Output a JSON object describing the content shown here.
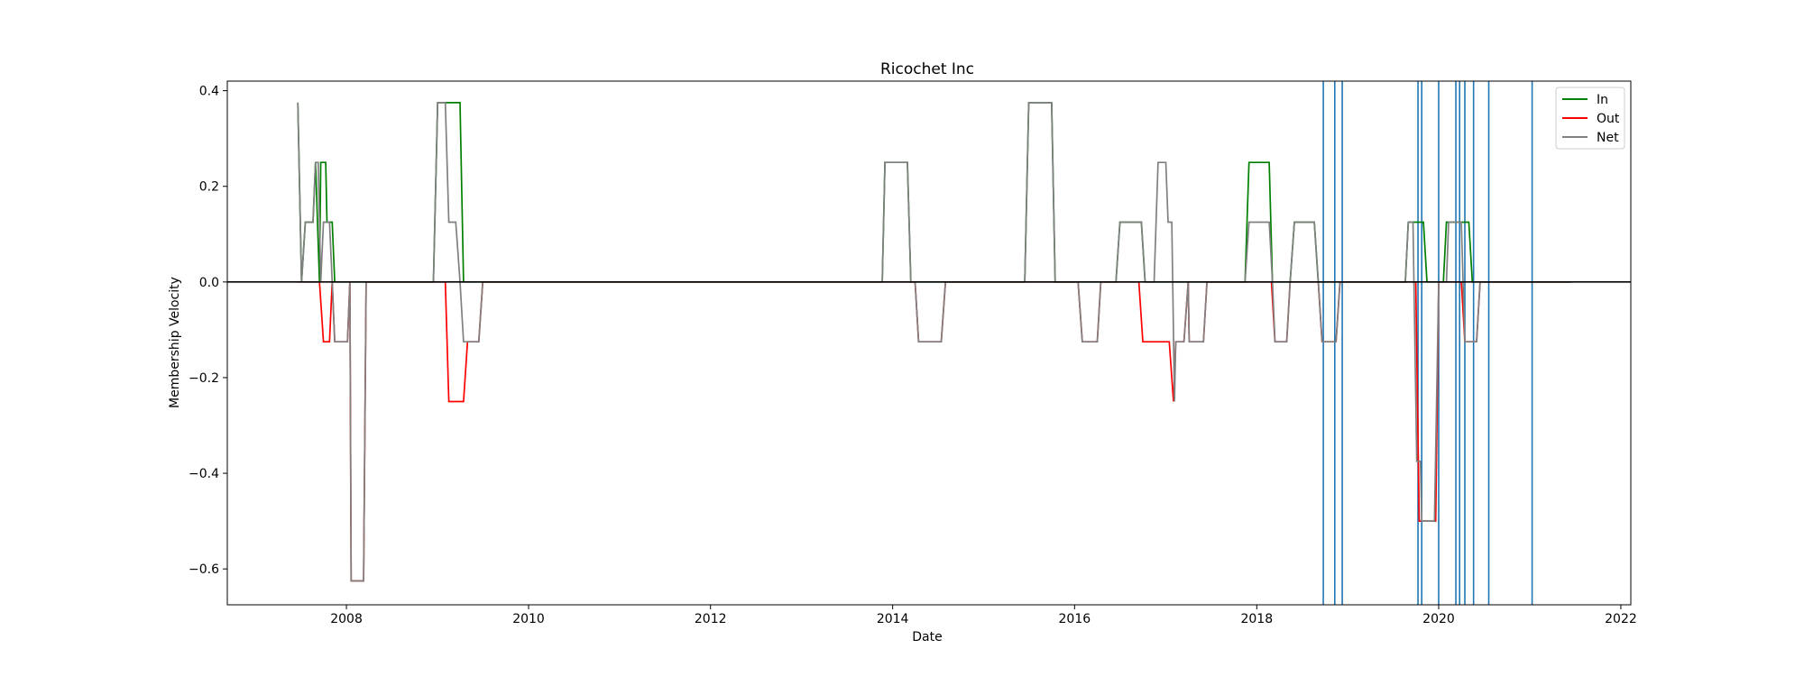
{
  "chart_data": {
    "type": "line",
    "title": "Ricochet Inc",
    "xlabel": "Date",
    "ylabel": "Membership Velocity",
    "xlim": [
      "2006-09-10",
      "2022-02-10"
    ],
    "ylim": [
      -0.675,
      0.42
    ],
    "x_ticks": [
      {
        "date": "2008-01-01",
        "label": "2008"
      },
      {
        "date": "2010-01-01",
        "label": "2010"
      },
      {
        "date": "2012-01-01",
        "label": "2012"
      },
      {
        "date": "2014-01-01",
        "label": "2014"
      },
      {
        "date": "2016-01-01",
        "label": "2016"
      },
      {
        "date": "2018-01-01",
        "label": "2018"
      },
      {
        "date": "2020-01-01",
        "label": "2020"
      },
      {
        "date": "2022-01-01",
        "label": "2022"
      }
    ],
    "y_ticks": [
      {
        "value": 0.4,
        "label": "0.4"
      },
      {
        "value": 0.2,
        "label": "0.2"
      },
      {
        "value": 0.0,
        "label": "0.0"
      },
      {
        "value": -0.2,
        "label": "−0.2"
      },
      {
        "value": -0.4,
        "label": "−0.4"
      },
      {
        "value": -0.6,
        "label": "−0.6"
      }
    ],
    "grid": false,
    "legend": "top-right",
    "zero_line_color": "#000000",
    "event_line_color": "#1f77b4",
    "series": [
      {
        "name": "In",
        "color": "#008000",
        "points": [
          [
            "2007-06-20",
            0.375
          ],
          [
            "2007-07-05",
            0.0
          ],
          [
            "2007-07-20",
            0.125
          ],
          [
            "2007-08-20",
            0.125
          ],
          [
            "2007-08-30",
            0.25
          ],
          [
            "2007-09-15",
            0.0
          ],
          [
            "2007-09-20",
            0.25
          ],
          [
            "2007-10-10",
            0.25
          ],
          [
            "2007-10-15",
            0.125
          ],
          [
            "2007-11-05",
            0.125
          ],
          [
            "2007-11-15",
            0.0
          ],
          [
            "2008-12-15",
            0.0
          ],
          [
            "2009-01-01",
            0.375
          ],
          [
            "2009-04-01",
            0.375
          ],
          [
            "2009-04-15",
            0.0
          ],
          [
            "2013-11-20",
            0.0
          ],
          [
            "2013-12-01",
            0.25
          ],
          [
            "2014-03-01",
            0.25
          ],
          [
            "2014-03-15",
            0.0
          ],
          [
            "2015-06-15",
            0.0
          ],
          [
            "2015-07-01",
            0.375
          ],
          [
            "2015-10-01",
            0.375
          ],
          [
            "2015-10-15",
            0.0
          ],
          [
            "2016-06-15",
            0.0
          ],
          [
            "2016-07-01",
            0.125
          ],
          [
            "2016-09-25",
            0.125
          ],
          [
            "2016-10-10",
            0.0
          ],
          [
            "2017-11-15",
            0.0
          ],
          [
            "2017-12-01",
            0.25
          ],
          [
            "2018-02-20",
            0.25
          ],
          [
            "2018-03-05",
            0.0
          ],
          [
            "2018-05-15",
            0.0
          ],
          [
            "2018-06-01",
            0.125
          ],
          [
            "2018-08-20",
            0.125
          ],
          [
            "2018-09-05",
            0.0
          ],
          [
            "2019-08-20",
            0.0
          ],
          [
            "2019-09-01",
            0.125
          ],
          [
            "2019-11-01",
            0.125
          ],
          [
            "2019-11-15",
            0.0
          ],
          [
            "2020-01-20",
            0.0
          ],
          [
            "2020-02-01",
            0.125
          ],
          [
            "2020-05-01",
            0.125
          ],
          [
            "2020-05-15",
            0.0
          ],
          [
            "2021-06-15",
            0.0
          ]
        ]
      },
      {
        "name": "Out",
        "color": "#ff0000",
        "points": [
          [
            "2007-06-20",
            0.0
          ],
          [
            "2007-09-15",
            0.0
          ],
          [
            "2007-10-01",
            -0.125
          ],
          [
            "2007-10-25",
            -0.125
          ],
          [
            "2007-11-05",
            0.0
          ],
          [
            "2007-11-15",
            -0.125
          ],
          [
            "2008-01-05",
            -0.125
          ],
          [
            "2008-01-15",
            0.0
          ],
          [
            "2008-01-20",
            -0.625
          ],
          [
            "2008-03-10",
            -0.625
          ],
          [
            "2008-03-20",
            0.0
          ],
          [
            "2009-02-01",
            0.0
          ],
          [
            "2009-02-15",
            -0.25
          ],
          [
            "2009-04-15",
            -0.25
          ],
          [
            "2009-05-01",
            -0.125
          ],
          [
            "2009-06-15",
            -0.125
          ],
          [
            "2009-07-01",
            0.0
          ],
          [
            "2014-04-01",
            0.0
          ],
          [
            "2014-04-15",
            -0.125
          ],
          [
            "2014-07-15",
            -0.125
          ],
          [
            "2014-08-01",
            0.0
          ],
          [
            "2016-01-15",
            0.0
          ],
          [
            "2016-02-01",
            -0.125
          ],
          [
            "2016-04-01",
            -0.125
          ],
          [
            "2016-04-15",
            0.0
          ],
          [
            "2016-09-15",
            0.0
          ],
          [
            "2016-10-01",
            -0.125
          ],
          [
            "2017-01-15",
            -0.125
          ],
          [
            "2017-02-01",
            -0.25
          ],
          [
            "2017-02-10",
            -0.125
          ],
          [
            "2017-03-15",
            -0.125
          ],
          [
            "2017-04-01",
            0.0
          ],
          [
            "2017-04-05",
            -0.125
          ],
          [
            "2017-06-01",
            -0.125
          ],
          [
            "2017-06-15",
            0.0
          ],
          [
            "2018-03-01",
            0.0
          ],
          [
            "2018-03-15",
            -0.125
          ],
          [
            "2018-05-01",
            -0.125
          ],
          [
            "2018-05-15",
            0.0
          ],
          [
            "2018-09-05",
            0.0
          ],
          [
            "2018-09-20",
            -0.125
          ],
          [
            "2018-11-15",
            -0.125
          ],
          [
            "2018-12-01",
            0.0
          ],
          [
            "2019-10-01",
            0.0
          ],
          [
            "2019-10-15",
            -0.5
          ],
          [
            "2019-12-20",
            -0.5
          ],
          [
            "2020-01-01",
            0.0
          ],
          [
            "2020-04-01",
            0.0
          ],
          [
            "2020-04-15",
            -0.125
          ],
          [
            "2020-06-01",
            -0.125
          ],
          [
            "2020-06-15",
            0.0
          ],
          [
            "2021-06-15",
            0.0
          ]
        ]
      },
      {
        "name": "Net",
        "color": "#808080",
        "points": [
          [
            "2007-06-20",
            0.375
          ],
          [
            "2007-07-05",
            0.0
          ],
          [
            "2007-07-20",
            0.125
          ],
          [
            "2007-08-20",
            0.125
          ],
          [
            "2007-08-30",
            0.25
          ],
          [
            "2007-09-10",
            0.25
          ],
          [
            "2007-09-20",
            0.0
          ],
          [
            "2007-10-01",
            0.125
          ],
          [
            "2007-10-25",
            0.125
          ],
          [
            "2007-11-05",
            0.0
          ],
          [
            "2007-11-15",
            -0.125
          ],
          [
            "2008-01-05",
            -0.125
          ],
          [
            "2008-01-15",
            0.0
          ],
          [
            "2008-01-20",
            -0.625
          ],
          [
            "2008-03-10",
            -0.625
          ],
          [
            "2008-03-20",
            0.0
          ],
          [
            "2008-12-15",
            0.0
          ],
          [
            "2009-01-01",
            0.375
          ],
          [
            "2009-02-01",
            0.375
          ],
          [
            "2009-02-15",
            0.125
          ],
          [
            "2009-03-15",
            0.125
          ],
          [
            "2009-04-01",
            0.0
          ],
          [
            "2009-04-15",
            -0.125
          ],
          [
            "2009-06-15",
            -0.125
          ],
          [
            "2009-07-01",
            0.0
          ],
          [
            "2013-11-20",
            0.0
          ],
          [
            "2013-12-01",
            0.25
          ],
          [
            "2014-03-01",
            0.25
          ],
          [
            "2014-03-15",
            0.0
          ],
          [
            "2014-04-01",
            0.0
          ],
          [
            "2014-04-15",
            -0.125
          ],
          [
            "2014-07-15",
            -0.125
          ],
          [
            "2014-08-01",
            0.0
          ],
          [
            "2015-06-15",
            0.0
          ],
          [
            "2015-07-01",
            0.375
          ],
          [
            "2015-10-01",
            0.375
          ],
          [
            "2015-10-15",
            0.0
          ],
          [
            "2016-01-15",
            0.0
          ],
          [
            "2016-02-01",
            -0.125
          ],
          [
            "2016-04-01",
            -0.125
          ],
          [
            "2016-04-15",
            0.0
          ],
          [
            "2016-06-15",
            0.0
          ],
          [
            "2016-07-01",
            0.125
          ],
          [
            "2016-09-25",
            0.125
          ],
          [
            "2016-10-10",
            0.0
          ],
          [
            "2016-11-15",
            0.0
          ],
          [
            "2016-12-01",
            0.25
          ],
          [
            "2017-01-01",
            0.25
          ],
          [
            "2017-01-10",
            0.125
          ],
          [
            "2017-01-25",
            0.125
          ],
          [
            "2017-02-05",
            -0.25
          ],
          [
            "2017-02-10",
            -0.125
          ],
          [
            "2017-03-15",
            -0.125
          ],
          [
            "2017-04-01",
            0.0
          ],
          [
            "2017-04-05",
            -0.125
          ],
          [
            "2017-06-01",
            -0.125
          ],
          [
            "2017-06-15",
            0.0
          ],
          [
            "2017-11-15",
            0.0
          ],
          [
            "2017-12-01",
            0.125
          ],
          [
            "2018-02-20",
            0.125
          ],
          [
            "2018-03-05",
            0.0
          ],
          [
            "2018-03-15",
            -0.125
          ],
          [
            "2018-05-01",
            -0.125
          ],
          [
            "2018-05-15",
            0.0
          ],
          [
            "2018-06-01",
            0.125
          ],
          [
            "2018-08-20",
            0.125
          ],
          [
            "2018-09-05",
            0.0
          ],
          [
            "2018-09-20",
            -0.125
          ],
          [
            "2018-11-15",
            -0.125
          ],
          [
            "2018-12-01",
            0.0
          ],
          [
            "2019-08-20",
            0.0
          ],
          [
            "2019-09-01",
            0.125
          ],
          [
            "2019-09-20",
            0.125
          ],
          [
            "2019-10-05",
            -0.375
          ],
          [
            "2019-10-20",
            -0.375
          ],
          [
            "2019-10-25",
            -0.5
          ],
          [
            "2019-12-15",
            -0.5
          ],
          [
            "2020-01-01",
            0.0
          ],
          [
            "2020-02-01",
            0.0
          ],
          [
            "2020-02-10",
            0.125
          ],
          [
            "2020-04-01",
            0.125
          ],
          [
            "2020-04-15",
            -0.125
          ],
          [
            "2020-06-01",
            -0.125
          ],
          [
            "2020-06-15",
            0.0
          ],
          [
            "2021-06-15",
            0.0
          ]
        ]
      }
    ],
    "event_dates": [
      "2018-09-25",
      "2018-11-10",
      "2018-12-10",
      "2019-10-10",
      "2019-10-25",
      "2020-01-01",
      "2020-03-10",
      "2020-03-25",
      "2020-04-15",
      "2020-05-20",
      "2020-07-20",
      "2021-01-10"
    ]
  }
}
